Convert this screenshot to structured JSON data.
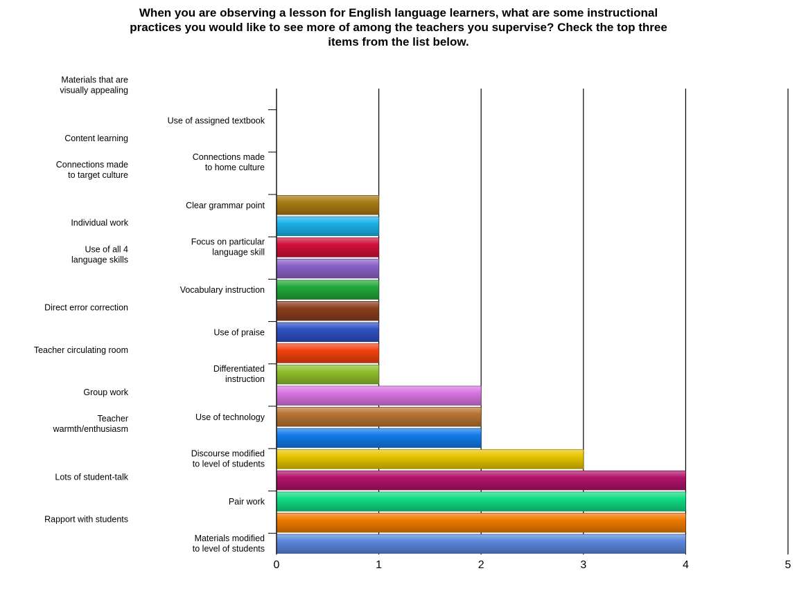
{
  "chart_data": {
    "type": "bar",
    "orientation": "horizontal",
    "title_lines": [
      "When you are observing a lesson for English language learners, what are some instructional",
      "practices you would like to see more of among the teachers you supervise?  Check the top three",
      "items from the list below."
    ],
    "xlim": [
      0,
      5
    ],
    "x_ticks": [
      "0",
      "1",
      "2",
      "3",
      "4",
      "5"
    ],
    "grid": "vertical",
    "legend": "none",
    "categories": [
      "Materials that are visually appealing",
      "Use of assigned textbook",
      "Content learning",
      "Connections made to home culture",
      "Connections made to target culture",
      "Clear grammar point",
      "Individual work",
      "Focus on particular language skill",
      "Use of all 4 language skills",
      "Vocabulary instruction",
      "Direct error correction",
      "Use of praise",
      "Teacher circulating room",
      "Differentiated instruction",
      "Group work",
      "Use of technology",
      "Teacher warmth/enthusiasm",
      "Discourse modified to level of students",
      "Lots of student-talk",
      "Pair work",
      "Rapport with students",
      "Materials modified to level of students"
    ],
    "label_lines": [
      [
        "Materials that are",
        "visually appealing"
      ],
      [
        "Use of assigned textbook"
      ],
      [
        "Content learning"
      ],
      [
        "Connections made",
        "to home culture"
      ],
      [
        "Connections made",
        "to target culture"
      ],
      [
        "Clear grammar point"
      ],
      [
        "Individual work"
      ],
      [
        "Focus on particular",
        "language skill"
      ],
      [
        "Use of all 4",
        "language skills"
      ],
      [
        "Vocabulary instruction"
      ],
      [
        "Direct error correction"
      ],
      [
        "Use of praise"
      ],
      [
        "Teacher circulating room"
      ],
      [
        "Differentiated",
        "instruction"
      ],
      [
        "Group work"
      ],
      [
        "Use of technology"
      ],
      [
        "Teacher",
        "warmth/enthusiasm"
      ],
      [
        "Discourse modified",
        "to level of students"
      ],
      [
        "Lots of student-talk"
      ],
      [
        "Pair work"
      ],
      [
        "Rapport with students"
      ],
      [
        "Materials modified",
        "to level of students"
      ]
    ],
    "values": [
      0,
      0,
      0,
      0,
      0,
      1,
      1,
      1,
      1,
      1,
      1,
      1,
      1,
      1,
      2,
      2,
      2,
      3,
      4,
      4,
      4,
      4
    ],
    "colors": [
      "#9aa0a6",
      "#9aa0a6",
      "#9aa0a6",
      "#9aa0a6",
      "#9aa0a6",
      "#a87a12",
      "#1bb1e7",
      "#d0103a",
      "#8a62c9",
      "#21a83a",
      "#8c3d1e",
      "#2f50c2",
      "#f1420d",
      "#8ebf2a",
      "#d974e0",
      "#b87332",
      "#137bea",
      "#e6c300",
      "#b0136a",
      "#10dc83",
      "#ee7a00",
      "#5b86db"
    ]
  }
}
